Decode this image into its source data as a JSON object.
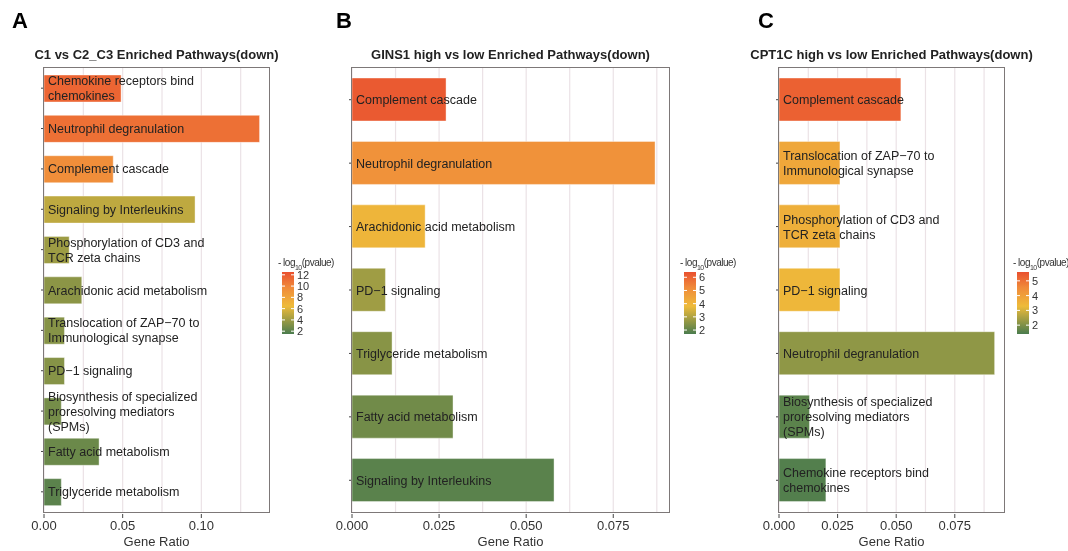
{
  "chart_data": [
    {
      "type": "bar",
      "orientation": "horizontal",
      "title": "C1 vs C2_C3 Enriched Pathways(down)",
      "xlabel": "Gene Ratio",
      "annotations": [
        "A"
      ],
      "categories": [
        "Chemokine receptors bind chemokines",
        "Neutrophil degranulation",
        "Complement cascade",
        "Signaling by Interleukins",
        "Phosphorylation of CD3 and TCR zeta chains",
        "Arachidonic acid metabolism",
        "Translocation of ZAP−70 to Immunological synapse",
        "PD−1 signaling",
        "Biosynthesis of specialized proresolving mediators (SPMs)",
        "Fatty acid metabolism",
        "Triglyceride metabolism"
      ],
      "values": [
        0.049,
        0.137,
        0.044,
        0.096,
        0.016,
        0.024,
        0.013,
        0.013,
        0.011,
        0.035,
        0.011
      ],
      "cvalues": [
        11.5,
        11,
        9.5,
        5,
        4,
        3.5,
        3.3,
        3.3,
        2.8,
        2.5,
        2
      ],
      "clabel": "- log$_{10}$(pvalue)",
      "clim": [
        1.5,
        12.5
      ],
      "cticks": [
        2,
        4,
        6,
        8,
        10,
        12
      ],
      "xlim": [
        0,
        0.143
      ],
      "xticks": [
        {
          "value": 0,
          "label": "0.00"
        },
        {
          "value": 0.025,
          "label": null
        },
        {
          "value": 0.05,
          "label": "0.05"
        },
        {
          "value": 0.075,
          "label": null
        },
        {
          "value": 0.1,
          "label": "0.10"
        },
        {
          "value": 0.125,
          "label": null
        }
      ],
      "grid": "x"
    },
    {
      "type": "bar",
      "orientation": "horizontal",
      "title": "GINS1 high vs low Enriched Pathways(down)",
      "xlabel": "Gene Ratio",
      "annotations": [
        "B"
      ],
      "categories": [
        "Complement cascade",
        "Neutrophil degranulation",
        "Arachidonic acid metabolism",
        "PD−1 signaling",
        "Triglyceride metabolism",
        "Fatty acid metabolism",
        "Signaling by Interleukins"
      ],
      "values": [
        0.027,
        0.087,
        0.021,
        0.0096,
        0.0115,
        0.029,
        0.058
      ],
      "cvalues": [
        6.2,
        5,
        4,
        2.8,
        2.5,
        2.2,
        1.9
      ],
      "clabel": "- log$_{10}$(pvalue)",
      "clim": [
        1.7,
        6.4
      ],
      "cticks": [
        2,
        3,
        4,
        5,
        6
      ],
      "xlim": [
        0,
        0.091
      ],
      "xticks": [
        {
          "value": 0,
          "label": "0.000"
        },
        {
          "value": 0.0125,
          "label": null
        },
        {
          "value": 0.025,
          "label": "0.025"
        },
        {
          "value": 0.0375,
          "label": null
        },
        {
          "value": 0.05,
          "label": "0.050"
        },
        {
          "value": 0.0625,
          "label": null
        },
        {
          "value": 0.075,
          "label": "0.075"
        },
        {
          "value": 0.0875,
          "label": null
        }
      ],
      "grid": "x"
    },
    {
      "type": "bar",
      "orientation": "horizontal",
      "title": "CPT1C high vs low Enriched Pathways(down)",
      "xlabel": "Gene Ratio",
      "annotations": [
        "C"
      ],
      "categories": [
        "Complement cascade",
        "Translocation of ZAP−70 to Immunological synapse",
        "Phosphorylation of CD3 and TCR zeta chains",
        "PD−1 signaling",
        "Neutrophil degranulation",
        "Biosynthesis of specialized proresolving mediators (SPMs)",
        "Chemokine receptors bind chemokines"
      ],
      "values": [
        0.052,
        0.026,
        0.026,
        0.026,
        0.092,
        0.013,
        0.02
      ],
      "cvalues": [
        5.3,
        3.8,
        3.6,
        3.4,
        2.2,
        1.6,
        1.5
      ],
      "clabel": "- log$_{10}$(pvalue)",
      "clim": [
        1.4,
        5.6
      ],
      "cticks": [
        2,
        3,
        4,
        5
      ],
      "xlim": [
        0,
        0.096
      ],
      "xticks": [
        {
          "value": 0,
          "label": "0.000"
        },
        {
          "value": 0.0125,
          "label": null
        },
        {
          "value": 0.025,
          "label": "0.025"
        },
        {
          "value": 0.0375,
          "label": null
        },
        {
          "value": 0.05,
          "label": "0.050"
        },
        {
          "value": 0.0625,
          "label": null
        },
        {
          "value": 0.075,
          "label": "0.075"
        },
        {
          "value": 0.0875,
          "label": null
        }
      ],
      "grid": "x"
    }
  ]
}
